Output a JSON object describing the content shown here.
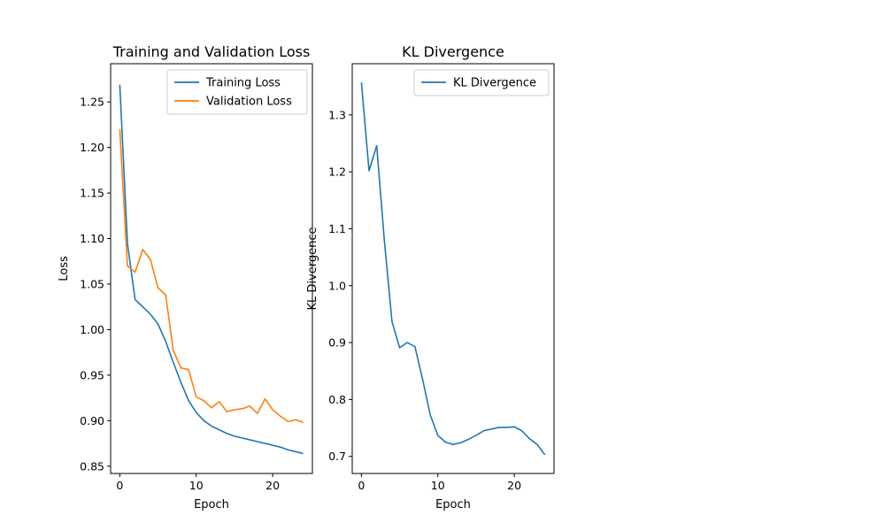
{
  "chart_data": [
    {
      "type": "line",
      "title": "Training and Validation Loss",
      "xlabel": "Epoch",
      "ylabel": "Loss",
      "xlim": [
        -1.2,
        25.2
      ],
      "ylim": [
        0.842,
        1.292
      ],
      "xticks": [
        0,
        10,
        20
      ],
      "yticks": [
        0.85,
        0.9,
        0.95,
        1.0,
        1.05,
        1.1,
        1.15,
        1.2,
        1.25
      ],
      "ytick_labels": [
        "0.85",
        "0.90",
        "0.95",
        "1.00",
        "1.05",
        "1.10",
        "1.15",
        "1.20",
        "1.25"
      ],
      "legend_position": "top-right",
      "grid": false,
      "x": [
        0,
        1,
        2,
        3,
        4,
        5,
        6,
        7,
        8,
        9,
        10,
        11,
        12,
        13,
        14,
        15,
        16,
        17,
        18,
        19,
        20,
        21,
        22,
        23,
        24
      ],
      "series": [
        {
          "name": "Training Loss",
          "color": "#1f77b4",
          "values": [
            1.269,
            1.095,
            1.033,
            1.025,
            1.017,
            1.006,
            0.987,
            0.964,
            0.942,
            0.922,
            0.909,
            0.9,
            0.894,
            0.89,
            0.886,
            0.883,
            0.881,
            0.879,
            0.877,
            0.875,
            0.873,
            0.871,
            0.868,
            0.866,
            0.864
          ]
        },
        {
          "name": "Validation Loss",
          "color": "#ff7f0e",
          "values": [
            1.22,
            1.07,
            1.063,
            1.088,
            1.077,
            1.046,
            1.038,
            0.977,
            0.958,
            0.956,
            0.926,
            0.922,
            0.914,
            0.921,
            0.91,
            0.912,
            0.913,
            0.916,
            0.908,
            0.924,
            0.912,
            0.905,
            0.899,
            0.901,
            0.898
          ]
        }
      ]
    },
    {
      "type": "line",
      "title": "KL Divergence",
      "xlabel": "Epoch",
      "ylabel": "KL Divergence",
      "xlim": [
        -1.2,
        25.2
      ],
      "ylim": [
        0.67,
        1.39
      ],
      "xticks": [
        0,
        10,
        20
      ],
      "yticks": [
        0.7,
        0.8,
        0.9,
        1.0,
        1.1,
        1.2,
        1.3
      ],
      "ytick_labels": [
        "0.7",
        "0.8",
        "0.9",
        "1.0",
        "1.1",
        "1.2",
        "1.3"
      ],
      "legend_position": "top-right",
      "grid": false,
      "x": [
        0,
        1,
        2,
        3,
        4,
        5,
        6,
        7,
        8,
        9,
        10,
        11,
        12,
        13,
        14,
        15,
        16,
        17,
        18,
        19,
        20,
        21,
        22,
        23,
        24
      ],
      "series": [
        {
          "name": "KL Divergence",
          "color": "#1f77b4",
          "values": [
            1.357,
            1.202,
            1.246,
            1.08,
            0.937,
            0.891,
            0.9,
            0.893,
            0.836,
            0.773,
            0.737,
            0.725,
            0.721,
            0.724,
            0.73,
            0.737,
            0.745,
            0.748,
            0.751,
            0.751,
            0.752,
            0.745,
            0.731,
            0.721,
            0.703
          ]
        }
      ]
    }
  ]
}
